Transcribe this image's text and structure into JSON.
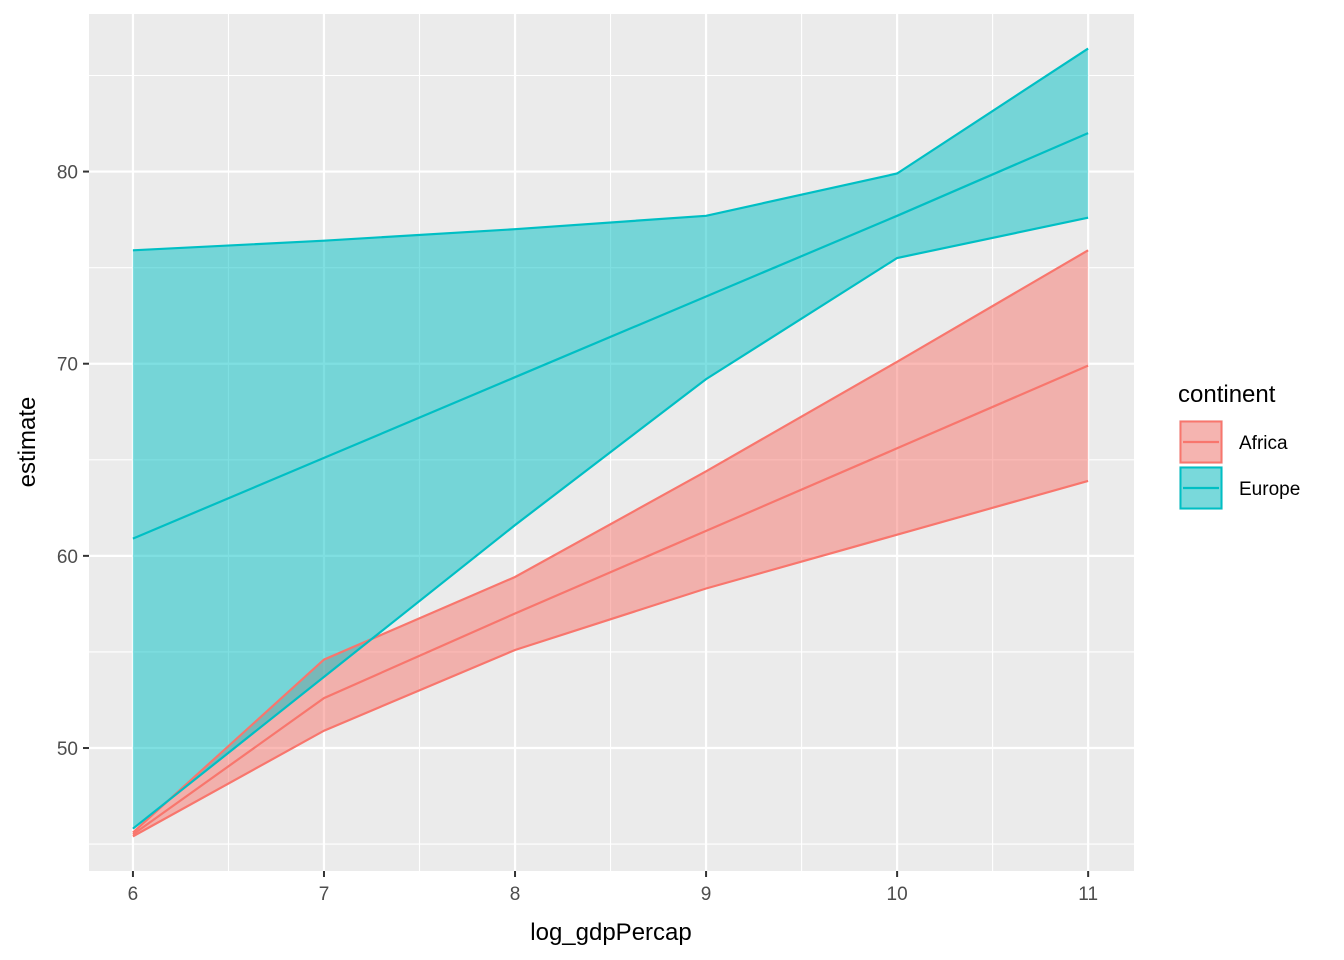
{
  "chart_data": {
    "type": "area",
    "xlabel": "log_gdpPercap",
    "ylabel": "estimate",
    "x": [
      6,
      7,
      8,
      9,
      10,
      11
    ],
    "xlim": [
      5.77,
      11.24
    ],
    "ylim": [
      43.6,
      88.2
    ],
    "x_ticks": [
      6,
      7,
      8,
      9,
      10,
      11
    ],
    "y_ticks": [
      50,
      60,
      70,
      80
    ],
    "grid": true,
    "legend": {
      "title": "continent",
      "placement": "right",
      "entries": [
        "Africa",
        "Europe"
      ]
    },
    "series": [
      {
        "name": "Africa",
        "color": "#F8766D",
        "estimate": [
          45.5,
          52.6,
          57.0,
          61.3,
          65.6,
          69.9
        ],
        "conf_low": [
          45.4,
          50.9,
          55.1,
          58.3,
          61.1,
          63.9
        ],
        "conf_high": [
          45.6,
          54.6,
          58.9,
          64.4,
          70.1,
          75.9
        ]
      },
      {
        "name": "Europe",
        "color": "#00BFC4",
        "estimate": [
          60.9,
          65.1,
          69.3,
          73.5,
          77.7,
          82.0
        ],
        "conf_low": [
          45.8,
          53.7,
          61.6,
          69.2,
          75.5,
          77.6
        ],
        "conf_high": [
          75.9,
          76.4,
          77.0,
          77.7,
          79.9,
          86.4
        ]
      }
    ]
  }
}
